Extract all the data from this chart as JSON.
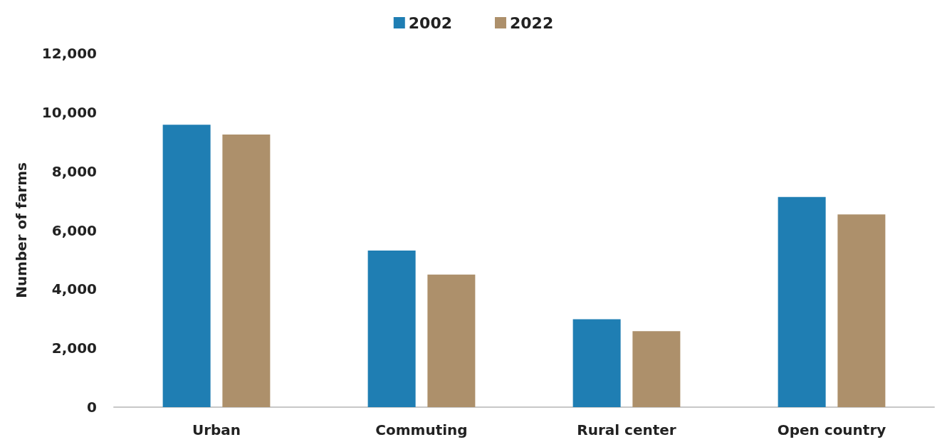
{
  "chart_data": {
    "type": "bar",
    "ylabel": "Number of farms",
    "categories": [
      "Urban",
      "Commuting",
      "Rural center",
      "Open country"
    ],
    "series": [
      {
        "name": "2002",
        "color": "#1f7eb3",
        "values": [
          9580,
          5310,
          2980,
          7130
        ]
      },
      {
        "name": "2022",
        "color": "#ad906b",
        "values": [
          9250,
          4500,
          2580,
          6540
        ]
      }
    ],
    "ylim": [
      0,
      12000
    ],
    "yticks": [
      0,
      {
        "value": 2000,
        "label": "2,000"
      },
      {
        "value": 4000,
        "label": "4,000"
      },
      {
        "value": 6000,
        "label": "6,000"
      },
      {
        "value": 8000,
        "label": "8,000"
      },
      {
        "value": 10000,
        "label": "10,000"
      },
      {
        "value": 12000,
        "label": "12,000"
      }
    ],
    "grid": false,
    "legend": "top"
  }
}
